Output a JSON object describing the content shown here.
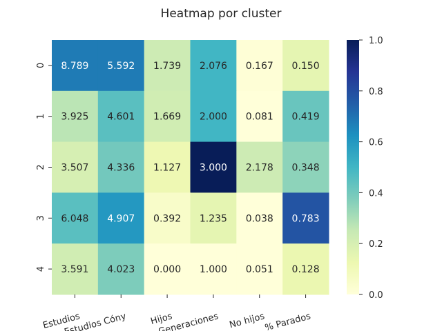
{
  "chart_data": {
    "type": "heatmap",
    "title": "Heatmap por cluster",
    "rows": [
      "0",
      "1",
      "2",
      "3",
      "4"
    ],
    "columns": [
      "Estudios",
      "Estudios Cóny",
      "Hijos",
      "Generaciones",
      "No hijos",
      "% Parados"
    ],
    "annotations": [
      [
        "8.789",
        "5.592",
        "1.739",
        "2.076",
        "0.167",
        "0.150"
      ],
      [
        "3.925",
        "4.601",
        "1.669",
        "2.000",
        "0.081",
        "0.419"
      ],
      [
        "3.507",
        "4.336",
        "1.127",
        "3.000",
        "2.178",
        "0.348"
      ],
      [
        "6.048",
        "4.907",
        "0.392",
        "1.235",
        "0.038",
        "0.783"
      ],
      [
        "3.591",
        "4.023",
        "0.000",
        "1.000",
        "0.051",
        "0.128"
      ]
    ],
    "color_values": [
      [
        0.68,
        0.68,
        0.23,
        0.5,
        0.01,
        0.15
      ],
      [
        0.27,
        0.45,
        0.22,
        0.5,
        0.0,
        0.42
      ],
      [
        0.2,
        0.4,
        0.12,
        1.0,
        0.23,
        0.35
      ],
      [
        0.45,
        0.6,
        0.05,
        0.15,
        0.0,
        0.78
      ],
      [
        0.22,
        0.38,
        0.0,
        0.0,
        0.0,
        0.13
      ]
    ],
    "colormap": "YlGnBu",
    "colorbar": {
      "ticks": [
        "0.0",
        "0.2",
        "0.4",
        "0.6",
        "0.8",
        "1.0"
      ],
      "range": [
        0,
        1
      ]
    }
  }
}
